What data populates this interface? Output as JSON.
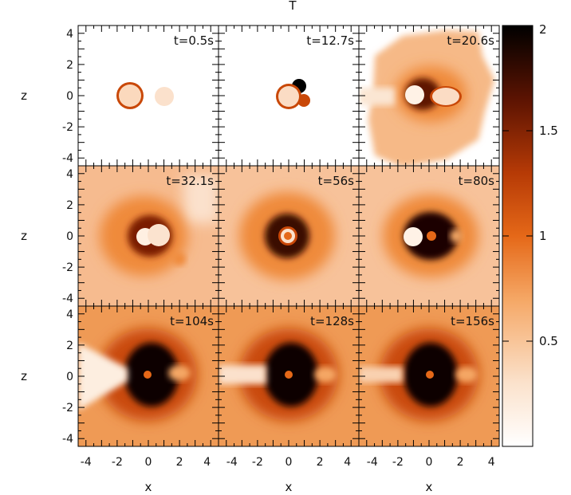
{
  "figure": {
    "title": "T"
  },
  "chart_data": {
    "type": "heatmap",
    "title": "T",
    "xlabel": "x",
    "ylabel": "z",
    "xlim": [
      -4.5,
      4.5
    ],
    "ylim": [
      -4.5,
      4.5
    ],
    "x_ticks": [
      -4,
      -2,
      0,
      2,
      4
    ],
    "x_tick_labels": [
      "-4",
      "-2",
      "0",
      "2",
      "4"
    ],
    "y_ticks": [
      -4,
      -2,
      0,
      2,
      4
    ],
    "y_tick_labels": [
      "-4",
      "-2",
      "0",
      "2",
      "4"
    ],
    "grid": "3x3",
    "colormap": [
      "#ffffff",
      "#f9d1b0",
      "#ef8a3a",
      "#c94808",
      "#7a1a04",
      "#000000"
    ],
    "colorbar": {
      "range": [
        0,
        2
      ],
      "ticks": [
        0.5,
        1,
        1.5,
        2
      ],
      "tick_labels": [
        "0.5",
        "1",
        "1.5",
        "2"
      ]
    },
    "panels": [
      {
        "time": "t=0.5s"
      },
      {
        "time": "t=12.7s"
      },
      {
        "time": "t=20.6s"
      },
      {
        "time": "t=32.1s"
      },
      {
        "time": "t=56s"
      },
      {
        "time": "t=80s"
      },
      {
        "time": "t=104s"
      },
      {
        "time": "t=128s"
      },
      {
        "time": "t=156s"
      }
    ]
  }
}
